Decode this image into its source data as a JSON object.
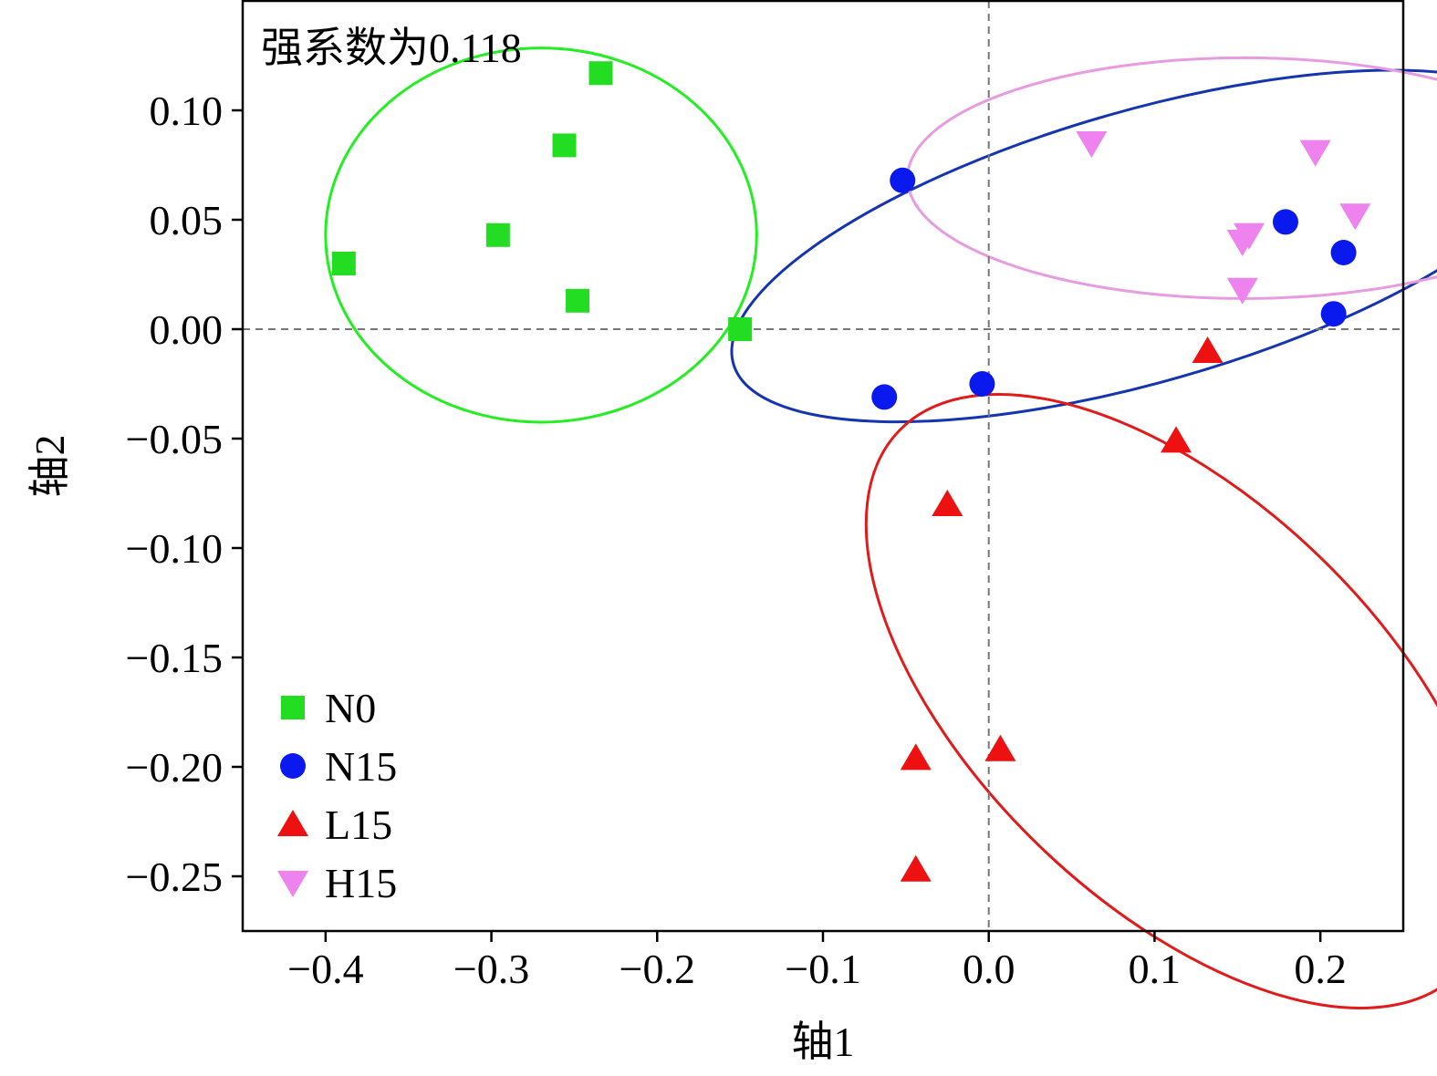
{
  "chart_data": {
    "type": "scatter",
    "annotation": "强系数为0.118",
    "xlabel": "轴1",
    "ylabel": "轴2",
    "xlim": [
      -0.45,
      0.25
    ],
    "ylim": [
      -0.275,
      0.15
    ],
    "xticks": [
      -0.4,
      -0.3,
      -0.2,
      -0.1,
      0.0,
      0.1,
      0.2
    ],
    "xtick_labels": [
      "−0.4",
      "−0.3",
      "−0.2",
      "−0.1",
      "0.0",
      "0.1",
      "0.2"
    ],
    "yticks": [
      0.1,
      0.05,
      0.0,
      -0.05,
      -0.1,
      -0.15,
      -0.2,
      -0.25
    ],
    "ytick_labels": [
      "0.10",
      "0.05",
      "0.00",
      "−0.05",
      "−0.10",
      "−0.15",
      "−0.20",
      "−0.25"
    ],
    "reference_lines": {
      "x": 0,
      "y": 0,
      "style": "dashed"
    },
    "grid": false,
    "legend_position": "bottom-left",
    "series": [
      {
        "name": "N0",
        "marker": "square",
        "color": "#22dd22",
        "points": [
          [
            -0.234,
            0.117
          ],
          [
            -0.256,
            0.084
          ],
          [
            -0.296,
            0.043
          ],
          [
            -0.389,
            0.03
          ],
          [
            -0.248,
            0.013
          ],
          [
            -0.15,
            0.0
          ]
        ],
        "ellipse": {
          "cx": -0.27,
          "cy": 0.043,
          "rx": 0.13,
          "ry": 0.0855,
          "angle_deg": 0,
          "color": "#22ee22"
        }
      },
      {
        "name": "N15",
        "marker": "circle",
        "color": "#0a1aee",
        "points": [
          [
            -0.052,
            0.068
          ],
          [
            -0.063,
            -0.031
          ],
          [
            -0.004,
            -0.025
          ],
          [
            0.179,
            0.049
          ],
          [
            0.214,
            0.035
          ],
          [
            0.208,
            0.007
          ]
        ],
        "ellipse": {
          "cx": 0.094,
          "cy": 0.038,
          "rx": 0.258,
          "ry": 0.062,
          "angle_deg": 16,
          "color": "#1535b0"
        }
      },
      {
        "name": "L15",
        "marker": "triangle-up",
        "color": "#ee1111",
        "points": [
          [
            0.132,
            -0.01
          ],
          [
            0.113,
            -0.051
          ],
          [
            -0.025,
            -0.08
          ],
          [
            -0.044,
            -0.196
          ],
          [
            0.007,
            -0.192
          ],
          [
            -0.044,
            -0.247
          ]
        ],
        "ellipse": {
          "cx": 0.115,
          "cy": -0.17,
          "rx": 0.235,
          "ry": 0.092,
          "angle_deg": -44,
          "color": "#e11a1a"
        }
      },
      {
        "name": "H15",
        "marker": "triangle-down",
        "color": "#ee82ee",
        "points": [
          [
            0.062,
            0.085
          ],
          [
            0.197,
            0.081
          ],
          [
            0.221,
            0.052
          ],
          [
            0.157,
            0.043
          ],
          [
            0.153,
            0.04
          ],
          [
            0.153,
            0.018
          ]
        ],
        "ellipse": {
          "cx": 0.154,
          "cy": 0.069,
          "rx": 0.203,
          "ry": 0.055,
          "angle_deg": 0,
          "color": "#e79be0"
        }
      }
    ]
  }
}
